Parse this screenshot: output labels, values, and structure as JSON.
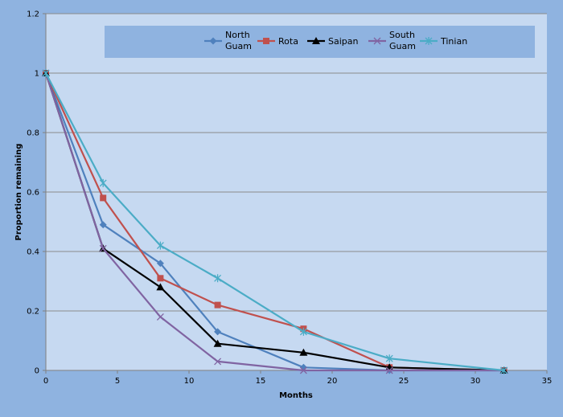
{
  "chart_data": {
    "type": "line",
    "xlabel": "Months",
    "ylabel": "Proportion remaining",
    "xlim": [
      0,
      35
    ],
    "ylim": [
      0,
      1.2
    ],
    "x_ticks": [
      0,
      5,
      10,
      15,
      20,
      25,
      30,
      35
    ],
    "y_ticks": [
      0,
      0.2,
      0.4,
      0.6,
      0.8,
      1,
      1.2
    ],
    "y_tick_labels": [
      "0",
      "0.2",
      "0.4",
      "0.6",
      "0.8",
      "1",
      "1.2"
    ],
    "grid": "horizontal",
    "legend_position": "top",
    "series": [
      {
        "name": "North Guam",
        "label_lines": [
          "North",
          "Guam"
        ],
        "color": "#4f81bd",
        "marker": "diamond",
        "x": [
          0,
          4,
          8,
          12,
          18,
          24,
          32
        ],
        "y": [
          1.0,
          0.49,
          0.36,
          0.13,
          0.01,
          0.0,
          0.0
        ]
      },
      {
        "name": "Rota",
        "label_lines": [
          "Rota"
        ],
        "color": "#c0504d",
        "marker": "square",
        "x": [
          0,
          4,
          8,
          12,
          18,
          24,
          32
        ],
        "y": [
          1.0,
          0.58,
          0.31,
          0.22,
          0.14,
          0.01,
          0.0
        ]
      },
      {
        "name": "Saipan",
        "label_lines": [
          "Saipan"
        ],
        "color": "#000000",
        "marker": "triangle",
        "x": [
          0,
          4,
          8,
          12,
          18,
          24,
          32
        ],
        "y": [
          1.0,
          0.41,
          0.28,
          0.09,
          0.06,
          0.01,
          0.0
        ]
      },
      {
        "name": "South Guam",
        "label_lines": [
          "South",
          "Guam"
        ],
        "color": "#8064a2",
        "marker": "x",
        "x": [
          0,
          4,
          8,
          12,
          18,
          24,
          32
        ],
        "y": [
          1.0,
          0.41,
          0.18,
          0.03,
          0.0,
          0.0,
          0.0
        ]
      },
      {
        "name": "Tinian",
        "label_lines": [
          "Tinian"
        ],
        "color": "#4bacc6",
        "marker": "star",
        "x": [
          0,
          4,
          8,
          12,
          18,
          24,
          32
        ],
        "y": [
          1.0,
          0.63,
          0.42,
          0.31,
          0.13,
          0.04,
          0.0
        ]
      }
    ]
  }
}
